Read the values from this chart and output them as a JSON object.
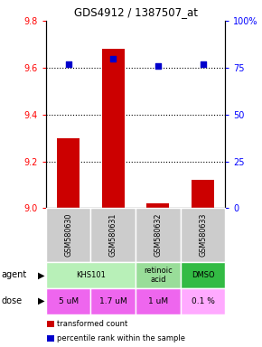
{
  "title": "GDS4912 / 1387507_at",
  "samples": [
    "GSM580630",
    "GSM580631",
    "GSM580632",
    "GSM580633"
  ],
  "bar_values": [
    9.3,
    9.68,
    9.02,
    9.12
  ],
  "percentile_values": [
    77,
    80,
    76,
    77
  ],
  "ylim_left": [
    9.0,
    9.8
  ],
  "ylim_right": [
    0,
    100
  ],
  "yticks_left": [
    9.0,
    9.2,
    9.4,
    9.6,
    9.8
  ],
  "yticks_right": [
    0,
    25,
    50,
    75,
    100
  ],
  "bar_color": "#cc0000",
  "percentile_color": "#0000cc",
  "bar_baseline": 9.0,
  "agent_spans": [
    [
      0,
      1,
      "KHS101"
    ],
    [
      2,
      2,
      "retinoic\nacid"
    ],
    [
      3,
      3,
      "DMSO"
    ]
  ],
  "agent_colors": {
    "KHS101": "#b8f0b8",
    "retinoic\nacid": "#99dd99",
    "DMSO": "#33bb44"
  },
  "doses": [
    "5 uM",
    "1.7 uM",
    "1 uM",
    "0.1 %"
  ],
  "dose_colors": [
    "#ee66ee",
    "#ee66ee",
    "#ee66ee",
    "#ffaaff"
  ],
  "sample_bg": "#cccccc",
  "legend_bar_label": "transformed count",
  "legend_pct_label": "percentile rank within the sample"
}
